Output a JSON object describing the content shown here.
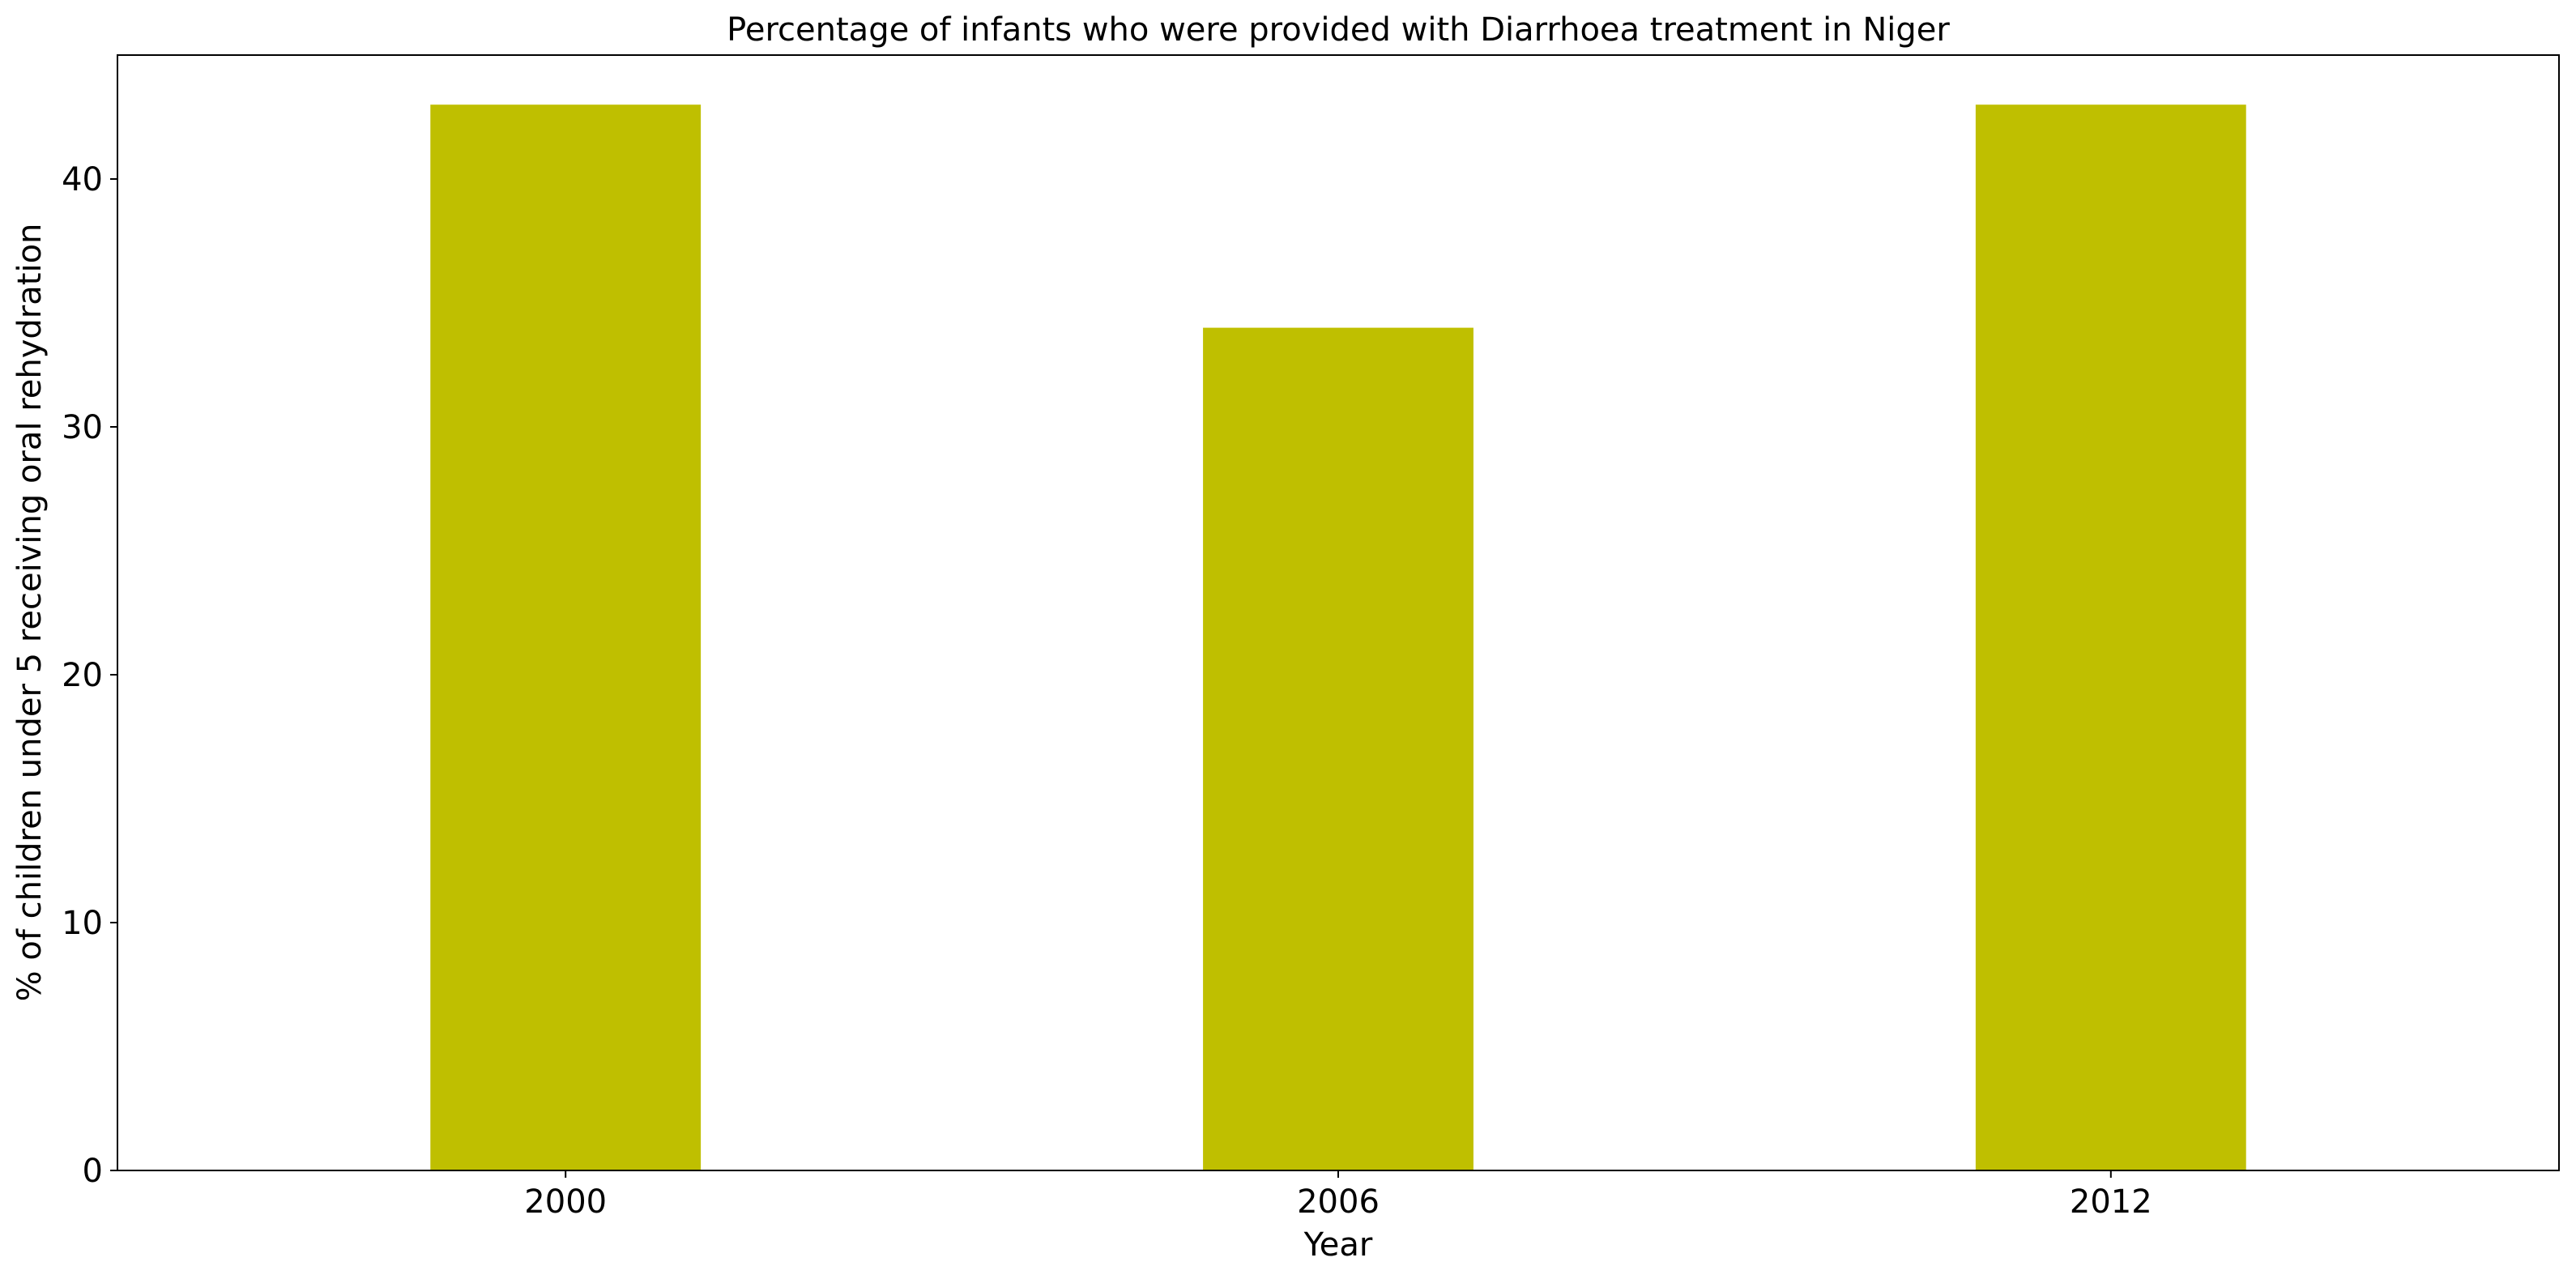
{
  "chart_data": {
    "type": "bar",
    "title": "Percentage of infants who were provided with Diarrhoea treatment in Niger",
    "xlabel": "Year",
    "ylabel": "% of children under 5 receiving oral rehydration",
    "categories": [
      "2000",
      "2006",
      "2012"
    ],
    "values": [
      43,
      34,
      43
    ],
    "ylim": [
      0,
      45
    ],
    "yticks": [
      0,
      10,
      20,
      30,
      40
    ],
    "bar_color": "#bfbf00",
    "grid": false,
    "legend": "none"
  }
}
